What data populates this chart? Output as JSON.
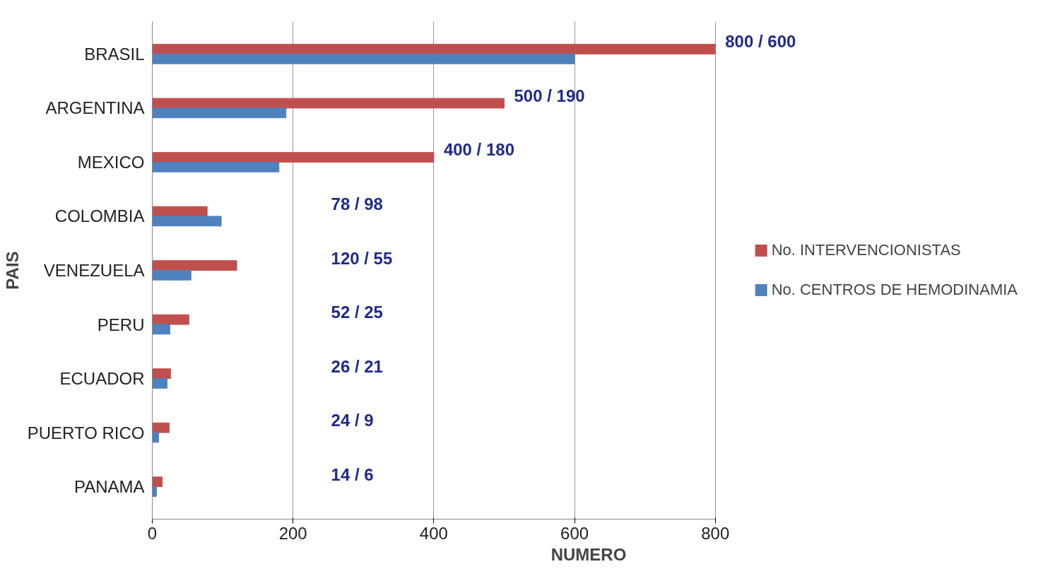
{
  "chart_data": {
    "type": "bar",
    "orientation": "horizontal",
    "xlabel": "NUMERO",
    "ylabel": "PAIS",
    "categories": [
      "BRASIL",
      "ARGENTINA",
      "MEXICO",
      "COLOMBIA",
      "VENEZUELA",
      "PERU",
      "ECUADOR",
      "PUERTO RICO",
      "PANAMA"
    ],
    "series": [
      {
        "name": "No. INTERVENCIONISTAS",
        "color": "#c0504d",
        "values": [
          800,
          500,
          400,
          78,
          120,
          52,
          26,
          24,
          14
        ]
      },
      {
        "name": "No. CENTROS DE HEMODINAMIA",
        "color": "#4f81bd",
        "values": [
          600,
          190,
          180,
          98,
          55,
          25,
          21,
          9,
          6
        ]
      }
    ],
    "xlim": [
      0,
      800
    ],
    "xticks": [
      0,
      200,
      400,
      600,
      800
    ],
    "grid": "x",
    "legend": "right",
    "annotations": [
      "800 / 600",
      "500 / 190",
      "400 / 180",
      "78 / 98",
      "120 / 55",
      "52 / 25",
      "26 / 21",
      "24 / 9",
      "14 / 6"
    ]
  }
}
